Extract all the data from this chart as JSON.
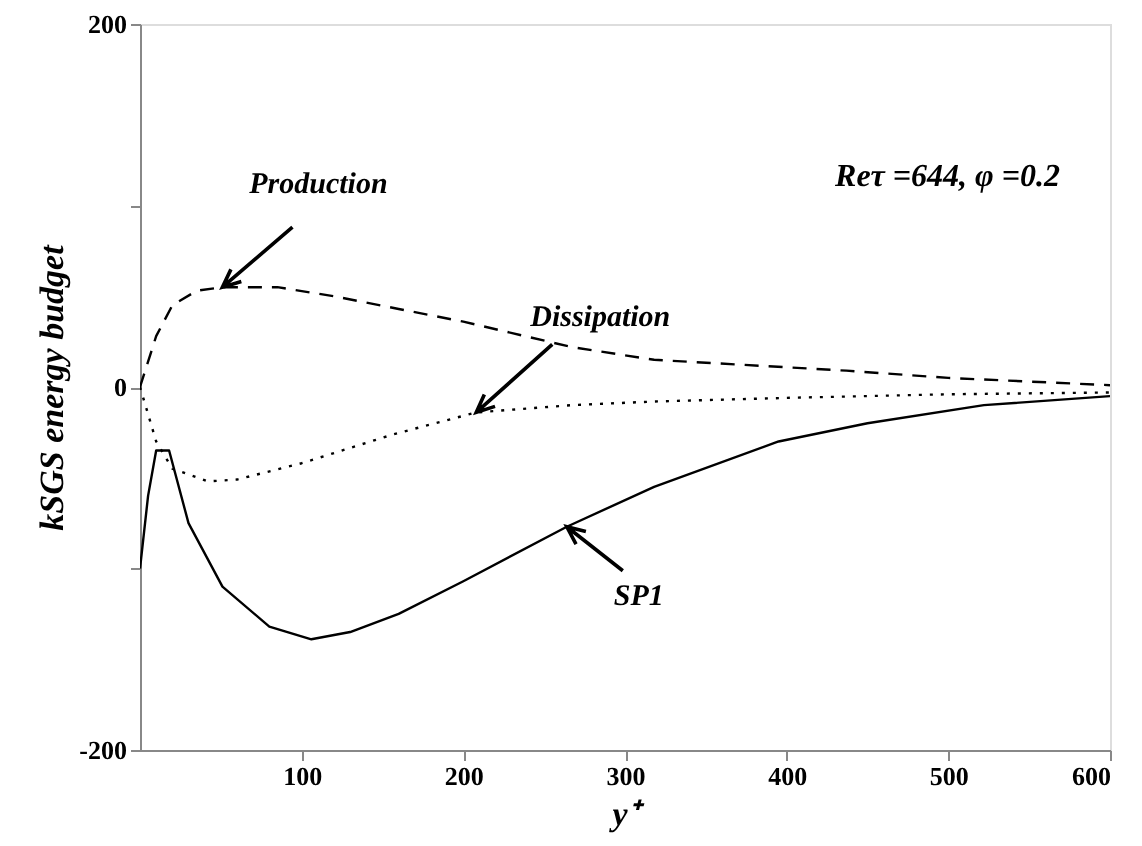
{
  "chart_data": {
    "type": "line",
    "xlabel": "y⁺",
    "ylabel": "kSGS energy budget",
    "xlim": [
      0,
      600
    ],
    "ylim": [
      -200,
      200
    ],
    "xticks": [
      100,
      200,
      300,
      400,
      500,
      600
    ],
    "yticks": [
      -200,
      {
        "value": -100,
        "label": null
      },
      0,
      {
        "value": 100,
        "label": null
      },
      200
    ],
    "grid": false,
    "series": [
      {
        "name": "Production",
        "color": "#000000",
        "line_style": "dashed",
        "x": [
          0,
          10,
          20,
          35,
          51,
          85,
          120,
          160,
          200,
          267,
          318,
          437,
          500,
          600
        ],
        "values": [
          0,
          28,
          45,
          53,
          55,
          55,
          50,
          43,
          36,
          22,
          15,
          9,
          5,
          1
        ]
      },
      {
        "name": "Dissipation",
        "color": "#000000",
        "line_style": "dotted",
        "x": [
          0,
          10,
          20,
          42,
          60,
          100,
          157,
          208,
          267,
          318,
          400,
          500,
          600
        ],
        "values": [
          0,
          -30,
          -45,
          -52,
          -51,
          -42,
          -26,
          -14,
          -10,
          -8,
          -6,
          -4,
          -3
        ]
      },
      {
        "name": "SP1",
        "color": "#000000",
        "line_style": "solid",
        "x": [
          0,
          5,
          10,
          18,
          30,
          51,
          80,
          106,
          130,
          160,
          200,
          264,
          318,
          395,
          450,
          522,
          600
        ],
        "values": [
          -100,
          -60,
          -35,
          -35,
          -75,
          -110,
          -132,
          -139,
          -135,
          -125,
          -107,
          -77,
          -55,
          -30,
          -20,
          -10,
          -5
        ]
      }
    ],
    "annotations": [
      "Reτ =644, φ =0.2"
    ]
  }
}
